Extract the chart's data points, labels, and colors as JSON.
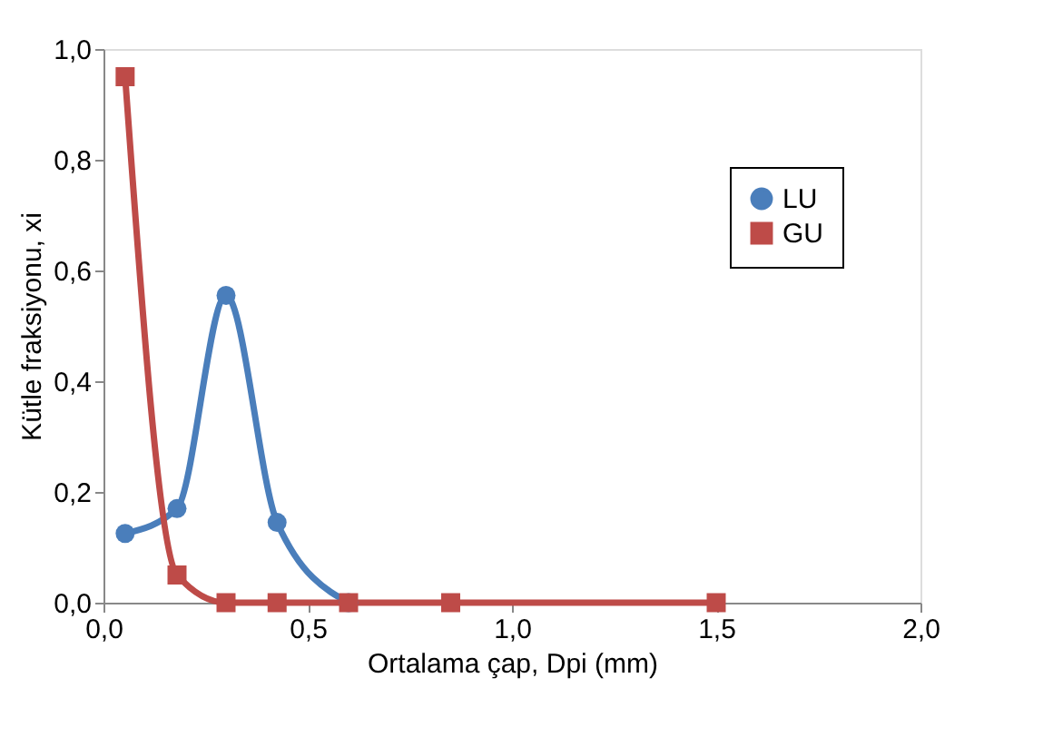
{
  "chart_data": {
    "type": "line",
    "xlabel": "Ortalama çap, Dpi (mm)",
    "ylabel": "Kütle fraksiyonu, xi",
    "series": [
      {
        "name": "LU",
        "color": "#4a7ebb",
        "marker": "circle",
        "x": [
          0.053,
          0.18,
          0.3,
          0.425,
          0.6
        ],
        "values": [
          0.125,
          0.17,
          0.555,
          0.145,
          0.0
        ]
      },
      {
        "name": "GU",
        "color": "#be4b48",
        "marker": "square",
        "x": [
          0.053,
          0.18,
          0.3,
          0.425,
          0.6,
          0.85,
          1.5
        ],
        "values": [
          0.95,
          0.05,
          0.0,
          0.0,
          0.0,
          0.0,
          0.0
        ]
      }
    ],
    "xlim": [
      0,
      2.0
    ],
    "ylim": [
      0,
      1.0
    ],
    "xticks": [
      {
        "value": 0,
        "label": "0,0"
      },
      {
        "value": 0.5,
        "label": "0,5"
      },
      {
        "value": 1.0,
        "label": "1,0"
      },
      {
        "value": 1.5,
        "label": "1,5"
      },
      {
        "value": 2.0,
        "label": "2,0"
      }
    ],
    "yticks": [
      {
        "value": 0,
        "label": "0,0"
      },
      {
        "value": 0.2,
        "label": "0,2"
      },
      {
        "value": 0.4,
        "label": "0,4"
      },
      {
        "value": 0.6,
        "label": "0,6"
      },
      {
        "value": 0.8,
        "label": "0,8"
      },
      {
        "value": 1.0,
        "label": "1,0"
      }
    ],
    "grid": false,
    "legend": "right",
    "line_style": "solid"
  }
}
